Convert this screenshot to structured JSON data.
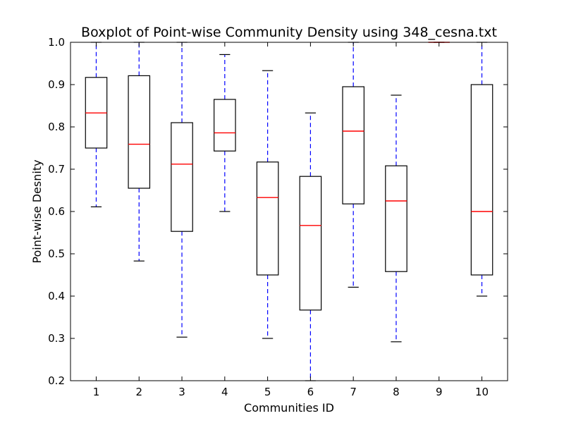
{
  "chart_data": {
    "type": "boxplot",
    "title": "Boxplot of Point-wise Community Density using 348_cesna.txt",
    "xlabel": "Communities ID",
    "ylabel": "Point-wise Desnity",
    "ylim": [
      0.2,
      1.0
    ],
    "yticks": [
      "0.2",
      "0.3",
      "0.4",
      "0.5",
      "0.6",
      "0.7",
      "0.8",
      "0.9",
      "1.0"
    ],
    "grid": false,
    "colors": {
      "box": "#000000",
      "median": "#ff0000",
      "whisker": "#0000ff",
      "cap": "#000000"
    },
    "categories": [
      "1",
      "2",
      "3",
      "4",
      "5",
      "6",
      "7",
      "8",
      "9",
      "10"
    ],
    "boxes": [
      {
        "category": "1",
        "whisker_low": 0.611,
        "q1": 0.75,
        "median": 0.833,
        "q3": 0.917,
        "whisker_high": 1.0
      },
      {
        "category": "2",
        "whisker_low": 0.483,
        "q1": 0.655,
        "median": 0.759,
        "q3": 0.921,
        "whisker_high": 1.0
      },
      {
        "category": "3",
        "whisker_low": 0.303,
        "q1": 0.553,
        "median": 0.712,
        "q3": 0.81,
        "whisker_high": 1.0
      },
      {
        "category": "4",
        "whisker_low": 0.6,
        "q1": 0.743,
        "median": 0.786,
        "q3": 0.865,
        "whisker_high": 0.971
      },
      {
        "category": "5",
        "whisker_low": 0.3,
        "q1": 0.45,
        "median": 0.633,
        "q3": 0.717,
        "whisker_high": 0.933
      },
      {
        "category": "6",
        "whisker_low": 0.2,
        "q1": 0.367,
        "median": 0.567,
        "q3": 0.683,
        "whisker_high": 0.833
      },
      {
        "category": "7",
        "whisker_low": 0.421,
        "q1": 0.618,
        "median": 0.79,
        "q3": 0.895,
        "whisker_high": 1.0
      },
      {
        "category": "8",
        "whisker_low": 0.292,
        "q1": 0.458,
        "median": 0.625,
        "q3": 0.708,
        "whisker_high": 0.875
      },
      {
        "category": "9",
        "whisker_low": 1.0,
        "q1": 1.0,
        "median": 1.0,
        "q3": 1.0,
        "whisker_high": 1.0
      },
      {
        "category": "10",
        "whisker_low": 0.4,
        "q1": 0.45,
        "median": 0.6,
        "q3": 0.9,
        "whisker_high": 1.0
      }
    ]
  }
}
